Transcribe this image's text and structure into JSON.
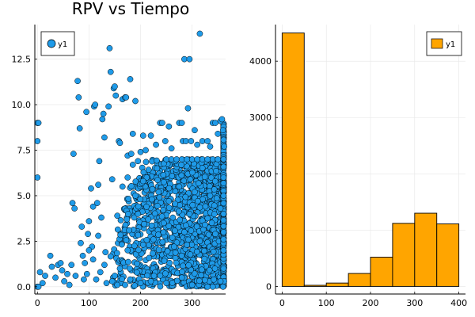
{
  "chart_data": [
    {
      "type": "scatter",
      "title": "RPV vs Tiempo",
      "xlabel": "",
      "ylabel": "",
      "xlim": [
        -5,
        365
      ],
      "ylim": [
        -0.4,
        14.4
      ],
      "x_ticks": [
        0,
        100,
        200,
        300
      ],
      "x_tick_labels": [
        "0",
        "100",
        "200",
        "300"
      ],
      "y_ticks": [
        0,
        2.5,
        5,
        7.5,
        10,
        12.5
      ],
      "y_tick_labels": [
        "0.0",
        "2.5",
        "5.0",
        "7.5",
        "10.0",
        "12.5"
      ],
      "grid": true,
      "legend_position": "top-left",
      "colors": {
        "marker": "#1f9be9",
        "edge": "#000000"
      },
      "series": [
        {
          "name": "y1",
          "points": [
            [
              0,
              0
            ],
            [
              2,
              0
            ],
            [
              0,
              6
            ],
            [
              0,
              8
            ],
            [
              0,
              9
            ],
            [
              2,
              9
            ],
            [
              5,
              0.8
            ],
            [
              10,
              0.2
            ],
            [
              15,
              0.6
            ],
            [
              25,
              1.7
            ],
            [
              28,
              1.1
            ],
            [
              35,
              0.5
            ],
            [
              40,
              1.2
            ],
            [
              45,
              1.3
            ],
            [
              48,
              0.9
            ],
            [
              52,
              0.3
            ],
            [
              58,
              0.7
            ],
            [
              62,
              0.1
            ],
            [
              66,
              1.2
            ],
            [
              70,
              7.3
            ],
            [
              68,
              4.6
            ],
            [
              72,
              4.3
            ],
            [
              74,
              0.6
            ],
            [
              78,
              11.3
            ],
            [
              80,
              10.4
            ],
            [
              82,
              8.7
            ],
            [
              84,
              2.4
            ],
            [
              86,
              3.3
            ],
            [
              88,
              1.7
            ],
            [
              90,
              0.4
            ],
            [
              95,
              9.6
            ],
            [
              98,
              2.9
            ],
            [
              100,
              3.6
            ],
            [
              104,
              5.4
            ],
            [
              106,
              2.2
            ],
            [
              108,
              1.5
            ],
            [
              110,
              9.9
            ],
            [
              112,
              10.0
            ],
            [
              114,
              0.4
            ],
            [
              116,
              4.6
            ],
            [
              118,
              5.6
            ],
            [
              120,
              6.9
            ],
            [
              122,
              0.8
            ],
            [
              124,
              3.8
            ],
            [
              126,
              9.2
            ],
            [
              128,
              9.5
            ],
            [
              130,
              8.2
            ],
            [
              132,
              1.9
            ],
            [
              134,
              0.2
            ],
            [
              138,
              9.9
            ],
            [
              140,
              13.1
            ],
            [
              142,
              11.8
            ],
            [
              145,
              5.9
            ],
            [
              148,
              10.9
            ],
            [
              150,
              11.0
            ],
            [
              152,
              10.5
            ],
            [
              155,
              3.9
            ],
            [
              158,
              8.0
            ],
            [
              160,
              7.9
            ],
            [
              165,
              10.3
            ],
            [
              170,
              10.4
            ],
            [
              172,
              10.4
            ],
            [
              175,
              7.2
            ],
            [
              178,
              3.1
            ],
            [
              180,
              11.4
            ],
            [
              182,
              7.3
            ],
            [
              185,
              8.4
            ],
            [
              190,
              10.2
            ],
            [
              195,
              6.9
            ],
            [
              200,
              7.4
            ],
            [
              205,
              8.3
            ],
            [
              210,
              7.5
            ],
            [
              220,
              8.3
            ],
            [
              230,
              7.8
            ],
            [
              238,
              9.0
            ],
            [
              242,
              9.0
            ],
            [
              248,
              8.0
            ],
            [
              255,
              8.8
            ],
            [
              260,
              7.6
            ],
            [
              268,
              6.9
            ],
            [
              275,
              9.0
            ],
            [
              280,
              9.0
            ],
            [
              282,
              8.0
            ],
            [
              285,
              12.5
            ],
            [
              288,
              8.0
            ],
            [
              292,
              9.8
            ],
            [
              295,
              12.5
            ],
            [
              298,
              8.0
            ],
            [
              305,
              8.6
            ],
            [
              310,
              7.8
            ],
            [
              315,
              13.9
            ],
            [
              320,
              8.0
            ],
            [
              330,
              8.0
            ],
            [
              335,
              7.7
            ],
            [
              340,
              9.0
            ],
            [
              345,
              9.0
            ],
            [
              350,
              8.4
            ],
            [
              355,
              9.1
            ],
            [
              358,
              9.2
            ],
            [
              360,
              8.6
            ],
            [
              362,
              7.7
            ],
            [
              361,
              7.0
            ],
            [
              250,
              7.0
            ],
            [
              260,
              7.0
            ],
            [
              270,
              7.0
            ],
            [
              280,
              7.0
            ],
            [
              290,
              7.0
            ],
            [
              300,
              7.0
            ],
            [
              310,
              7.0
            ],
            [
              320,
              7.0
            ],
            [
              330,
              7.0
            ],
            [
              340,
              7.0
            ],
            [
              350,
              7.0
            ],
            [
              212,
              6.0
            ],
            [
              232,
              6.5
            ],
            [
              222,
              4.8
            ],
            [
              190,
              5.0
            ],
            [
              175,
              2.0
            ],
            [
              160,
              1.0
            ],
            [
              150,
              0.6
            ],
            [
              145,
              0.3
            ],
            [
              130,
              1.2
            ],
            [
              118,
              2.8
            ],
            [
              108,
              4.4
            ],
            [
              100,
              2.0
            ],
            [
              96,
              0.7
            ],
            [
              92,
              1.3
            ],
            [
              330,
              0.0
            ],
            [
              340,
              0.0
            ],
            [
              360,
              0.0
            ],
            [
              362,
              0.3
            ],
            [
              361,
              1.0
            ],
            [
              355,
              0.3
            ],
            [
              300,
              0.1
            ],
            [
              280,
              0.5
            ],
            [
              250,
              0.2
            ],
            [
              220,
              0.3
            ],
            [
              200,
              0.2
            ],
            [
              180,
              0.4
            ],
            [
              170,
              0.1
            ],
            [
              155,
              0.1
            ],
            [
              175,
              6.0
            ],
            [
              165,
              5.5
            ],
            [
              185,
              6.7
            ],
            [
              195,
              4.0
            ],
            [
              205,
              5.8
            ],
            [
              215,
              3.7
            ],
            [
              225,
              2.6
            ],
            [
              235,
              5.2
            ],
            [
              245,
              3.5
            ],
            [
              255,
              4.7
            ],
            [
              265,
              2.2
            ],
            [
              275,
              5.5
            ],
            [
              285,
              3.0
            ],
            [
              295,
              4.0
            ],
            [
              305,
              5.2
            ],
            [
              315,
              2.5
            ],
            [
              325,
              3.4
            ],
            [
              335,
              5.0
            ],
            [
              345,
              2.9
            ],
            [
              355,
              4.3
            ],
            [
              361,
              6.0
            ],
            [
              361,
              5.0
            ],
            [
              361,
              4.0
            ],
            [
              361,
              3.0
            ],
            [
              361,
              2.0
            ]
          ]
        }
      ]
    },
    {
      "type": "histogram",
      "title": "",
      "xlabel": "",
      "ylabel": "",
      "xlim": [
        -15,
        415
      ],
      "ylim": [
        -135,
        4650
      ],
      "x_ticks": [
        0,
        100,
        200,
        300,
        400
      ],
      "x_tick_labels": [
        "0",
        "100",
        "200",
        "300",
        "400"
      ],
      "y_ticks": [
        0,
        1000,
        2000,
        3000,
        4000
      ],
      "y_tick_labels": [
        "0",
        "1000",
        "2000",
        "3000",
        "4000"
      ],
      "grid": true,
      "legend_position": "top-right",
      "colors": {
        "bar": "#ffa500",
        "edge": "#000000"
      },
      "series": [
        {
          "name": "y1",
          "bin_edges": [
            0,
            50,
            100,
            150,
            200,
            250,
            300,
            350,
            400
          ],
          "counts": [
            4500,
            20,
            60,
            230,
            520,
            1120,
            1300,
            1110
          ]
        }
      ]
    }
  ]
}
